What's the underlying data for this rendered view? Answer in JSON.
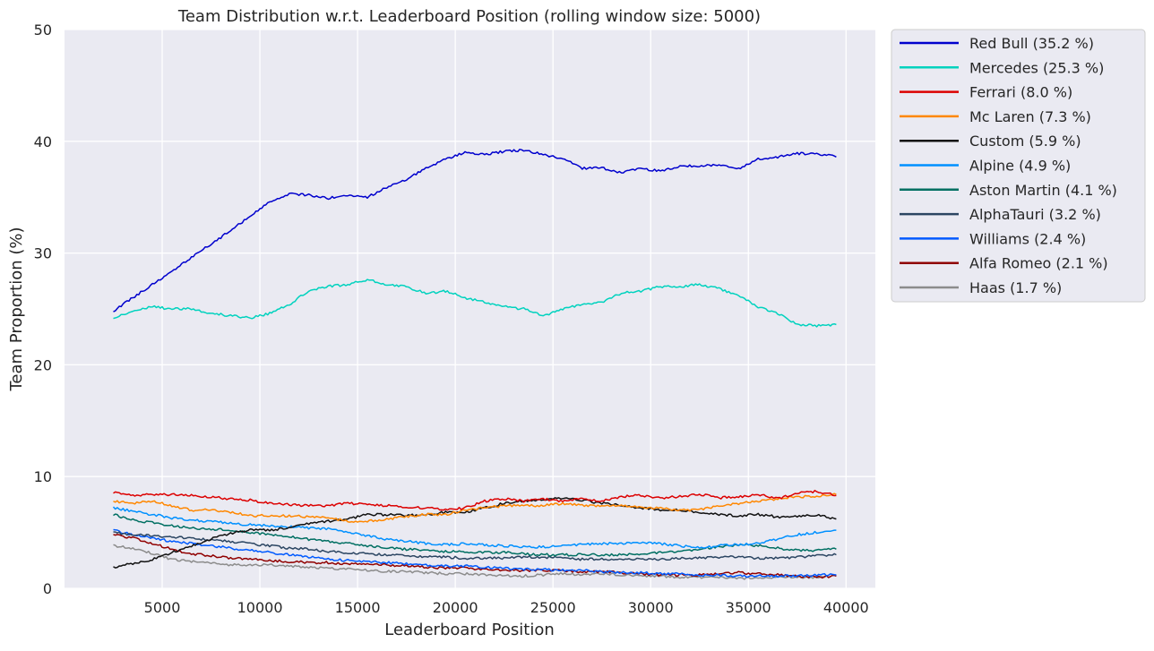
{
  "chart_data": {
    "type": "line",
    "title": "Team Distribution w.r.t. Leaderboard Position (rolling window size: 5000)",
    "xlabel": "Leaderboard Position",
    "ylabel": "Team Proportion (%)",
    "xlim": [
      0,
      41500
    ],
    "ylim": [
      0,
      50
    ],
    "xticks": [
      5000,
      10000,
      15000,
      20000,
      25000,
      30000,
      35000,
      40000
    ],
    "yticks": [
      0,
      10,
      20,
      30,
      40,
      50
    ],
    "grid": true,
    "legend_position": "outside-right",
    "x": [
      2500,
      3500,
      4500,
      5500,
      6500,
      7500,
      8500,
      9500,
      10500,
      11500,
      12500,
      13500,
      14500,
      15500,
      16500,
      17500,
      18500,
      19500,
      20500,
      21500,
      22500,
      23500,
      24500,
      25500,
      26500,
      27500,
      28500,
      29500,
      30500,
      31500,
      32500,
      33500,
      34500,
      35500,
      36500,
      37500,
      38500,
      39500
    ],
    "series": [
      {
        "name": "Red Bull (35.2 %)",
        "color": "#0000cd",
        "values": [
          24.8,
          26.0,
          27.2,
          28.4,
          29.6,
          30.8,
          32.0,
          33.3,
          34.6,
          35.3,
          35.2,
          34.9,
          35.2,
          35.0,
          35.9,
          36.6,
          37.6,
          38.4,
          39.0,
          38.8,
          39.1,
          39.2,
          38.8,
          38.5,
          37.6,
          37.6,
          37.2,
          37.6,
          37.3,
          37.8,
          37.8,
          37.9,
          37.5,
          38.4,
          38.6,
          38.9,
          38.9,
          38.6
        ]
      },
      {
        "name": "Mercedes (25.3 %)",
        "color": "#00d2be",
        "values": [
          24.2,
          24.8,
          25.2,
          25.0,
          25.0,
          24.6,
          24.4,
          24.2,
          24.6,
          25.4,
          26.6,
          27.0,
          27.2,
          27.6,
          27.2,
          27.0,
          26.4,
          26.6,
          26.0,
          25.6,
          25.2,
          25.0,
          24.4,
          25.0,
          25.4,
          25.6,
          26.4,
          26.6,
          27.0,
          27.0,
          27.2,
          26.8,
          26.2,
          25.2,
          24.6,
          23.6,
          23.5,
          23.6
        ]
      },
      {
        "name": "Ferrari (8.0 %)",
        "color": "#dc0000",
        "values": [
          8.6,
          8.3,
          8.4,
          8.4,
          8.3,
          8.2,
          8.0,
          7.9,
          7.6,
          7.5,
          7.4,
          7.4,
          7.6,
          7.5,
          7.4,
          7.3,
          7.2,
          7.0,
          7.2,
          7.8,
          8.0,
          7.8,
          8.0,
          7.8,
          8.0,
          7.8,
          8.2,
          8.3,
          8.1,
          8.2,
          8.4,
          8.1,
          8.2,
          8.4,
          8.0,
          8.5,
          8.7,
          8.3
        ]
      },
      {
        "name": "Mc Laren (7.3 %)",
        "color": "#ff8700",
        "values": [
          7.8,
          7.6,
          7.8,
          7.4,
          7.0,
          7.0,
          6.8,
          6.5,
          6.5,
          6.5,
          6.4,
          6.3,
          6.0,
          6.0,
          6.2,
          6.4,
          6.6,
          6.6,
          7.0,
          7.2,
          7.4,
          7.4,
          7.4,
          7.6,
          7.4,
          7.4,
          7.4,
          7.2,
          7.2,
          7.0,
          7.0,
          7.4,
          7.6,
          7.8,
          8.0,
          8.2,
          8.2,
          8.4
        ]
      },
      {
        "name": "Custom (5.9 %)",
        "color": "#111111",
        "values": [
          1.9,
          2.2,
          2.6,
          3.2,
          3.8,
          4.4,
          4.9,
          5.2,
          5.2,
          5.4,
          5.8,
          6.0,
          6.2,
          6.6,
          6.6,
          6.5,
          6.6,
          6.8,
          6.8,
          7.2,
          7.6,
          7.8,
          7.9,
          8.1,
          7.9,
          7.6,
          7.4,
          7.2,
          7.0,
          7.0,
          6.8,
          6.6,
          6.5,
          6.6,
          6.4,
          6.4,
          6.6,
          6.2
        ]
      },
      {
        "name": "Alpine (4.9 %)",
        "color": "#0090ff",
        "values": [
          7.2,
          6.9,
          6.6,
          6.3,
          6.1,
          6.0,
          5.8,
          5.7,
          5.6,
          5.5,
          5.4,
          5.3,
          5.0,
          4.7,
          4.4,
          4.2,
          4.0,
          3.9,
          4.0,
          3.9,
          3.8,
          3.7,
          3.7,
          3.8,
          3.9,
          4.0,
          4.0,
          4.1,
          4.0,
          3.8,
          3.6,
          3.8,
          3.9,
          4.0,
          4.4,
          4.8,
          5.0,
          5.2
        ]
      },
      {
        "name": "Aston Martin (4.1 %)",
        "color": "#006f62",
        "values": [
          6.6,
          6.1,
          5.9,
          5.6,
          5.4,
          5.3,
          5.2,
          5.0,
          4.8,
          4.6,
          4.4,
          4.2,
          4.0,
          3.8,
          3.6,
          3.5,
          3.4,
          3.3,
          3.3,
          3.2,
          3.2,
          3.1,
          3.0,
          3.0,
          3.0,
          3.0,
          3.0,
          3.1,
          3.2,
          3.3,
          3.5,
          3.7,
          3.9,
          3.8,
          3.6,
          3.4,
          3.4,
          3.5
        ]
      },
      {
        "name": "AlphaTauri (3.2 %)",
        "color": "#2b4562",
        "values": [
          5.0,
          4.8,
          4.7,
          4.6,
          4.5,
          4.3,
          4.2,
          4.0,
          3.8,
          3.6,
          3.5,
          3.3,
          3.2,
          3.1,
          3.0,
          2.9,
          2.8,
          2.8,
          2.7,
          2.7,
          2.7,
          2.8,
          2.8,
          2.7,
          2.6,
          2.6,
          2.6,
          2.6,
          2.6,
          2.7,
          2.7,
          2.8,
          2.8,
          2.7,
          2.7,
          2.8,
          2.9,
          3.0
        ]
      },
      {
        "name": "Williams (2.4 %)",
        "color": "#005aff",
        "values": [
          5.2,
          4.8,
          4.5,
          4.2,
          4.0,
          3.8,
          3.6,
          3.4,
          3.2,
          3.0,
          2.8,
          2.6,
          2.5,
          2.4,
          2.3,
          2.2,
          2.1,
          2.0,
          2.0,
          1.9,
          1.8,
          1.7,
          1.7,
          1.6,
          1.6,
          1.5,
          1.4,
          1.4,
          1.3,
          1.3,
          1.2,
          1.2,
          1.1,
          1.1,
          1.1,
          1.1,
          1.2,
          1.2
        ]
      },
      {
        "name": "Alfa Romeo (2.1 %)",
        "color": "#900000",
        "values": [
          4.8,
          4.5,
          4.0,
          3.5,
          3.1,
          2.9,
          2.7,
          2.6,
          2.5,
          2.4,
          2.3,
          2.3,
          2.2,
          2.2,
          2.1,
          2.0,
          1.9,
          1.8,
          1.8,
          1.7,
          1.6,
          1.6,
          1.6,
          1.6,
          1.5,
          1.5,
          1.4,
          1.3,
          1.2,
          1.2,
          1.2,
          1.3,
          1.4,
          1.3,
          1.2,
          1.1,
          1.0,
          1.1
        ]
      },
      {
        "name": "Haas (1.7 %)",
        "color": "#8c8c8c",
        "values": [
          3.8,
          3.6,
          3.1,
          2.6,
          2.4,
          2.3,
          2.1,
          2.1,
          2.1,
          2.0,
          1.9,
          1.8,
          1.7,
          1.6,
          1.5,
          1.5,
          1.4,
          1.3,
          1.3,
          1.2,
          1.1,
          1.1,
          1.2,
          1.3,
          1.2,
          1.3,
          1.2,
          1.1,
          1.1,
          1.0,
          1.0,
          1.0,
          0.9,
          0.9,
          1.0,
          1.0,
          1.0,
          1.1
        ]
      }
    ]
  }
}
